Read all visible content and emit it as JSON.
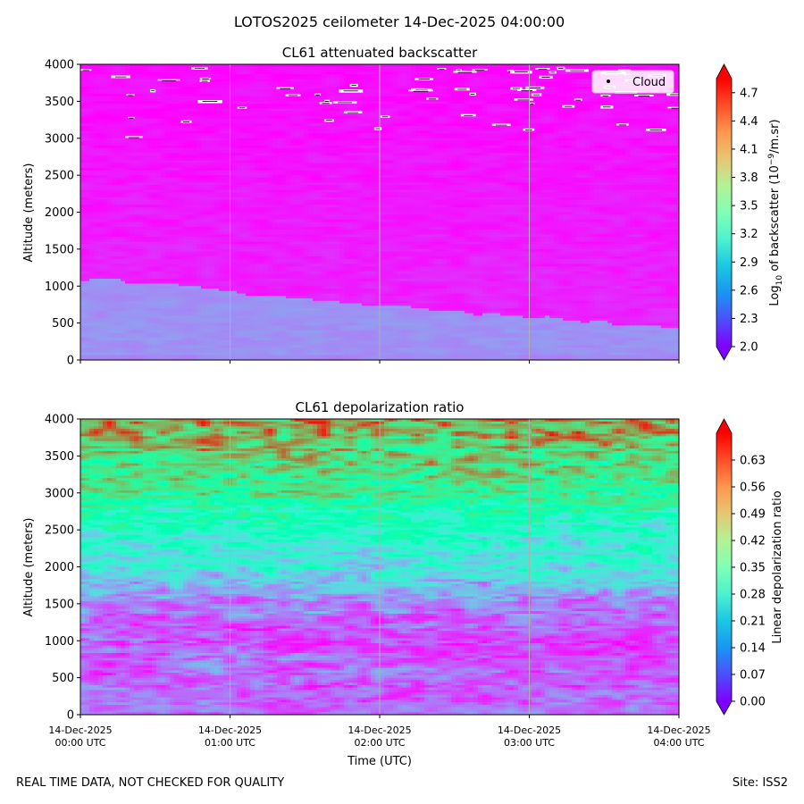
{
  "figure": {
    "suptitle": "LOTOS2025 ceilometer 14-Dec-2025 04:00:00",
    "footer_left": "REAL TIME DATA, NOT CHECKED FOR QUALITY",
    "footer_right": "Site: ISS2"
  },
  "chart_data": [
    {
      "type": "heatmap",
      "title": "CL61 attenuated backscatter",
      "xlabel": "",
      "ylabel": "Altitude (meters)",
      "x_ticks": [
        "14-Dec-2025\n00:00 UTC",
        "14-Dec-2025\n01:00 UTC",
        "14-Dec-2025\n02:00 UTC",
        "14-Dec-2025\n03:00 UTC",
        "14-Dec-2025\n04:00 UTC"
      ],
      "x_range_hours": [
        0,
        4
      ],
      "y_ticks": [
        0,
        500,
        1000,
        1500,
        2000,
        2500,
        3000,
        3500,
        4000
      ],
      "ylim": [
        0,
        4000
      ],
      "grid": "vertical lines at hourly ticks",
      "colorbar": {
        "label": "Log10 of backscatter (10^-9/m.sr)",
        "label_main": "Log",
        "label_sub": "10",
        "label_mid": " of backscatter (10",
        "label_sup": "−9",
        "label_end": "/m.sr)",
        "ticks": [
          "2.0",
          "2.3",
          "2.6",
          "2.9",
          "3.2",
          "3.5",
          "3.8",
          "4.1",
          "4.4",
          "4.7"
        ],
        "range": [
          2.0,
          4.85
        ],
        "colormap": "rainbow"
      },
      "legend": {
        "entries": [
          "Cloud"
        ],
        "position": "top-right",
        "marker": "black dot"
      },
      "layers": {
        "aerosol_layer_top_m": [
          1080,
          1060,
          1040,
          1000,
          930,
          860,
          820,
          780,
          740,
          700,
          660,
          620,
          580,
          540,
          500,
          460,
          420
        ],
        "aerosol_layer_value": 2.55,
        "background_value": 2.15
      },
      "cloud_hits_note": "scattered white cloud detections between 3000 and 4000 m"
    },
    {
      "type": "heatmap",
      "title": "CL61 depolarization ratio",
      "xlabel": "Time (UTC)",
      "ylabel": "Altitude (meters)",
      "x_ticks": [
        "14-Dec-2025\n00:00 UTC",
        "14-Dec-2025\n01:00 UTC",
        "14-Dec-2025\n02:00 UTC",
        "14-Dec-2025\n03:00 UTC",
        "14-Dec-2025\n04:00 UTC"
      ],
      "x_range_hours": [
        0,
        4
      ],
      "y_ticks": [
        0,
        500,
        1000,
        1500,
        2000,
        2500,
        3000,
        3500,
        4000
      ],
      "ylim": [
        0,
        4000
      ],
      "grid": "vertical lines at hourly ticks",
      "colorbar": {
        "label": "Linear depolarization ratio",
        "ticks": [
          "0.00",
          "0.07",
          "0.14",
          "0.21",
          "0.28",
          "0.35",
          "0.42",
          "0.49",
          "0.56",
          "0.63"
        ],
        "range": [
          0.0,
          0.7
        ],
        "colormap": "rainbow"
      },
      "profile": {
        "altitude_m": [
          0,
          500,
          1000,
          1500,
          2000,
          2500,
          3000,
          3500,
          4000
        ],
        "ratio": [
          0.1,
          0.08,
          0.06,
          0.12,
          0.25,
          0.3,
          0.42,
          0.48,
          0.55
        ]
      }
    }
  ]
}
